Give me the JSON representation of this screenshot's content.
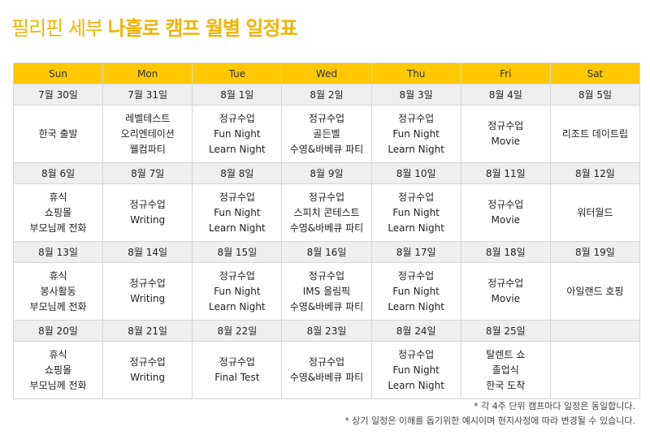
{
  "title": {
    "part1": "필리핀 세부 ",
    "part2": "나홀로 캠프 월별 일정표"
  },
  "days": [
    "Sun",
    "Mon",
    "Tue",
    "Wed",
    "Thu",
    "Fri",
    "Sat"
  ],
  "weeks": [
    {
      "dates": [
        "7월 30일",
        "7월 31일",
        "8월 1일",
        "8월 2일",
        "8월 3일",
        "8월 4일",
        "8월 5일"
      ],
      "activities": [
        [
          "한국 출발"
        ],
        [
          "레벨테스트",
          "오리엔테이션",
          "웰컴파티"
        ],
        [
          "정규수업",
          "Fun Night",
          "Learn Night"
        ],
        [
          "정규수업",
          "골든벨",
          "수영&바베큐 파티"
        ],
        [
          "정규수업",
          "Fun Night",
          "Learn Night"
        ],
        [
          "정규수업",
          "Movie"
        ],
        [
          "리조트 데이트립"
        ]
      ]
    },
    {
      "dates": [
        "8월 6일",
        "8월 7일",
        "8월 8일",
        "8월 9일",
        "8월 10일",
        "8월 11일",
        "8월 12일"
      ],
      "activities": [
        [
          "휴식",
          "쇼핑몰",
          "부모님께 전화"
        ],
        [
          "정규수업",
          "Writing"
        ],
        [
          "정규수업",
          "Fun Night",
          "Learn Night"
        ],
        [
          "정규수업",
          "스피치 콘테스트",
          "수영&바베큐 파티"
        ],
        [
          "정규수업",
          "Fun Night",
          "Learn Night"
        ],
        [
          "정규수업",
          "Movie"
        ],
        [
          "워터월드"
        ]
      ]
    },
    {
      "dates": [
        "8월 13일",
        "8월 14일",
        "8월 15일",
        "8월 16일",
        "8월 17일",
        "8월 18일",
        "8월 19일"
      ],
      "activities": [
        [
          "휴식",
          "봉사활동",
          "부모님께 전화"
        ],
        [
          "정규수업",
          "Writing"
        ],
        [
          "정규수업",
          "Fun Night",
          "Learn Night"
        ],
        [
          "정규수업",
          "IMS 올림픽",
          "수영&바베큐 파티"
        ],
        [
          "정규수업",
          "Fun Night",
          "Learn Night"
        ],
        [
          "정규수업",
          "Movie"
        ],
        [
          "아일랜드 호핑"
        ]
      ]
    },
    {
      "dates": [
        "8월 20일",
        "8월 21일",
        "8월 22일",
        "8월 23일",
        "8월 24일",
        "8월 25일",
        ""
      ],
      "activities": [
        [
          "휴식",
          "쇼핑몰",
          "부모님께 전화"
        ],
        [
          "정규수업",
          "Writing"
        ],
        [
          "정규수업",
          "Final Test"
        ],
        [
          "정규수업",
          "수영&바베큐 파티"
        ],
        [
          "정규수업",
          "Fun Night",
          "Learn Night"
        ],
        [
          "탈렌트 쇼",
          "졸업식",
          "한국 도착"
        ],
        []
      ]
    }
  ],
  "notes": [
    "* 각 4주 단위 캠프마다 일정은 동일합니다.",
    "* 상기 일정은 이해를 돕기위한 예시이며 현지사정에 따라 변경될 수 있습니다."
  ],
  "colors": {
    "accent": "#ffc800",
    "title": "#f0b400",
    "date_row": "#efefef"
  }
}
